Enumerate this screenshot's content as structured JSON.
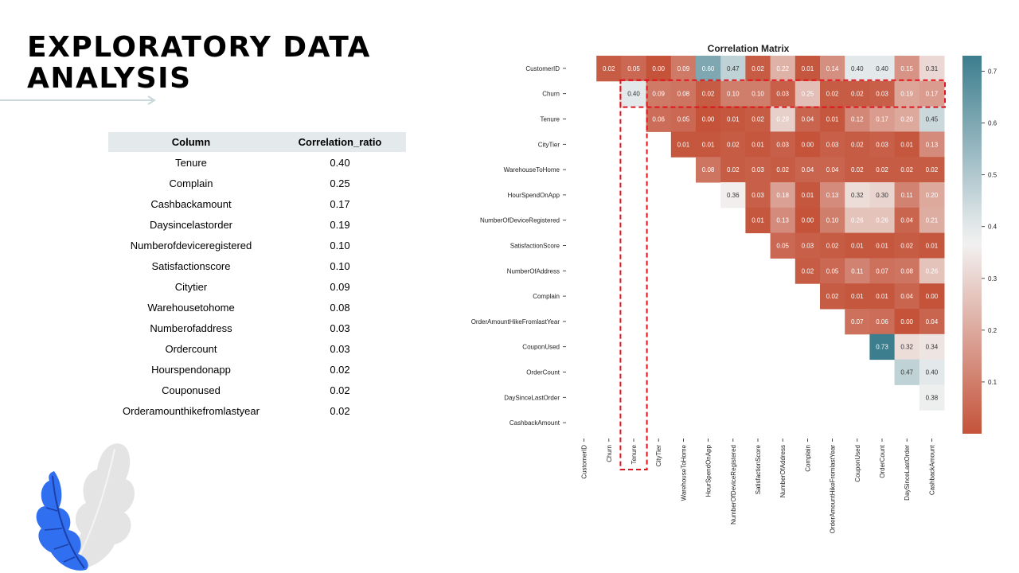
{
  "slide": {
    "title_line1": "EXPLORATORY DATA",
    "title_line2": "ANALYSIS"
  },
  "table": {
    "headers": [
      "Column",
      "Correlation_ratio"
    ],
    "rows": [
      [
        "Tenure",
        "0.40"
      ],
      [
        "Complain",
        "0.25"
      ],
      [
        "Cashbackamount",
        "0.17"
      ],
      [
        "Daysincelastorder",
        "0.19"
      ],
      [
        "Numberofdeviceregistered",
        "0.10"
      ],
      [
        "Satisfactionscore",
        "0.10"
      ],
      [
        "Citytier",
        "0.09"
      ],
      [
        "Warehousetohome",
        "0.08"
      ],
      [
        "Numberofaddress",
        "0.03"
      ],
      [
        "Ordercount",
        "0.03"
      ],
      [
        "Hourspendonapp",
        "0.02"
      ],
      [
        "Couponused",
        "0.02"
      ],
      [
        "Orderamounthikefromlastyear",
        "0.02"
      ]
    ]
  },
  "chart_data": {
    "type": "heatmap",
    "title": "Correlation Matrix",
    "variables": [
      "CustomerID",
      "Churn",
      "Tenure",
      "CityTier",
      "WarehouseToHome",
      "HourSpendOnApp",
      "NumberOfDeviceRegistered",
      "SatisfactionScore",
      "NumberOfAddress",
      "Complain",
      "OrderAmountHikeFromlastYear",
      "CouponUsed",
      "OrderCount",
      "DaySinceLastOrder",
      "CashbackAmount"
    ],
    "matrix": [
      [
        null,
        0.02,
        0.05,
        0.0,
        0.09,
        0.6,
        0.47,
        0.02,
        0.22,
        0.01,
        0.14,
        0.4,
        0.4,
        0.15,
        0.31
      ],
      [
        null,
        null,
        0.4,
        0.09,
        0.08,
        0.02,
        0.1,
        0.1,
        0.03,
        0.25,
        0.02,
        0.02,
        0.03,
        0.19,
        0.17
      ],
      [
        null,
        null,
        null,
        0.06,
        0.05,
        0.0,
        0.01,
        0.02,
        0.29,
        0.04,
        0.01,
        0.12,
        0.17,
        0.2,
        0.45
      ],
      [
        null,
        null,
        null,
        null,
        0.01,
        0.01,
        0.02,
        0.01,
        0.03,
        0.0,
        0.03,
        0.02,
        0.03,
        0.01,
        0.13
      ],
      [
        null,
        null,
        null,
        null,
        null,
        0.08,
        0.02,
        0.03,
        0.02,
        0.04,
        0.04,
        0.02,
        0.02,
        0.02,
        0.02
      ],
      [
        null,
        null,
        null,
        null,
        null,
        null,
        0.36,
        0.03,
        0.18,
        0.01,
        0.13,
        0.32,
        0.3,
        0.11,
        0.2
      ],
      [
        null,
        null,
        null,
        null,
        null,
        null,
        null,
        0.01,
        0.13,
        0.0,
        0.1,
        0.26,
        0.26,
        0.04,
        0.21
      ],
      [
        null,
        null,
        null,
        null,
        null,
        null,
        null,
        null,
        0.05,
        0.03,
        0.02,
        0.01,
        0.01,
        0.02,
        0.01
      ],
      [
        null,
        null,
        null,
        null,
        null,
        null,
        null,
        null,
        null,
        0.02,
        0.05,
        0.11,
        0.07,
        0.08,
        0.26
      ],
      [
        null,
        null,
        null,
        null,
        null,
        null,
        null,
        null,
        null,
        null,
        0.02,
        0.01,
        0.01,
        0.04,
        0.0
      ],
      [
        null,
        null,
        null,
        null,
        null,
        null,
        null,
        null,
        null,
        null,
        null,
        0.07,
        0.06,
        0.0,
        0.04
      ],
      [
        null,
        null,
        null,
        null,
        null,
        null,
        null,
        null,
        null,
        null,
        null,
        null,
        0.73,
        0.32,
        0.34
      ],
      [
        null,
        null,
        null,
        null,
        null,
        null,
        null,
        null,
        null,
        null,
        null,
        null,
        null,
        0.47,
        0.4
      ],
      [
        null,
        null,
        null,
        null,
        null,
        null,
        null,
        null,
        null,
        null,
        null,
        null,
        null,
        null,
        0.38
      ],
      [
        null,
        null,
        null,
        null,
        null,
        null,
        null,
        null,
        null,
        null,
        null,
        null,
        null,
        null,
        null
      ]
    ],
    "colorbar": {
      "min": 0.0,
      "max": 0.73,
      "ticks": [
        0.1,
        0.2,
        0.3,
        0.4,
        0.5,
        0.6,
        0.7
      ]
    },
    "colors": {
      "low": "#c4533a",
      "mid": "#f2f2f2",
      "high": "#3c7d8e",
      "highlight": "#e0141e"
    },
    "highlights": [
      "Churn row",
      "Tenure column"
    ]
  }
}
